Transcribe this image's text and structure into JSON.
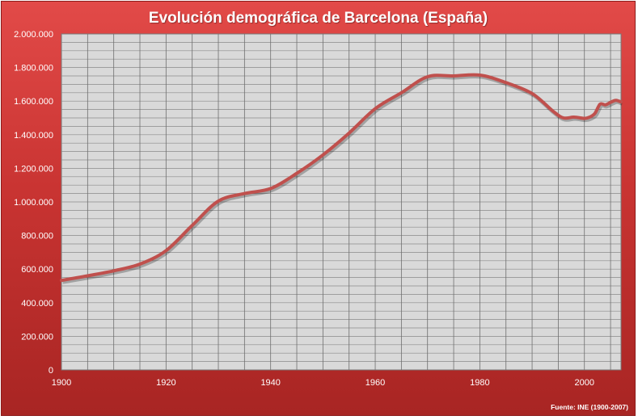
{
  "chart_data": {
    "type": "line",
    "title": "Evolución demográfica de Barcelona (España)",
    "source": "Fuente: INE (1900-2007)",
    "xlabel": "",
    "ylabel": "",
    "xlim": [
      1900,
      2007
    ],
    "ylim": [
      0,
      2000000
    ],
    "grid": true,
    "x_ticks": [
      "1900",
      "1920",
      "1940",
      "1960",
      "1980",
      "2000"
    ],
    "y_ticks": [
      "0",
      "200.000",
      "400.000",
      "600.000",
      "800.000",
      "1.000.000",
      "1.200.000",
      "1.400.000",
      "1.600.000",
      "1.800.000",
      "2.000.000"
    ],
    "series": [
      {
        "color": "#c0504d",
        "x": [
          1900,
          1905,
          1910,
          1915,
          1920,
          1925,
          1930,
          1935,
          1940,
          1945,
          1950,
          1955,
          1960,
          1965,
          1970,
          1975,
          1980,
          1985,
          1990,
          1994,
          1996,
          1998,
          2000,
          2001,
          2002,
          2003,
          2004,
          2005,
          2006,
          2007
        ],
        "y": [
          533000,
          560000,
          590000,
          630000,
          710000,
          860000,
          1005000,
          1050000,
          1080000,
          1170000,
          1280000,
          1410000,
          1555000,
          1650000,
          1745000,
          1750000,
          1755000,
          1710000,
          1645000,
          1540000,
          1500000,
          1505000,
          1497000,
          1505000,
          1527000,
          1582000,
          1578000,
          1593000,
          1605000,
          1595000
        ]
      }
    ]
  }
}
